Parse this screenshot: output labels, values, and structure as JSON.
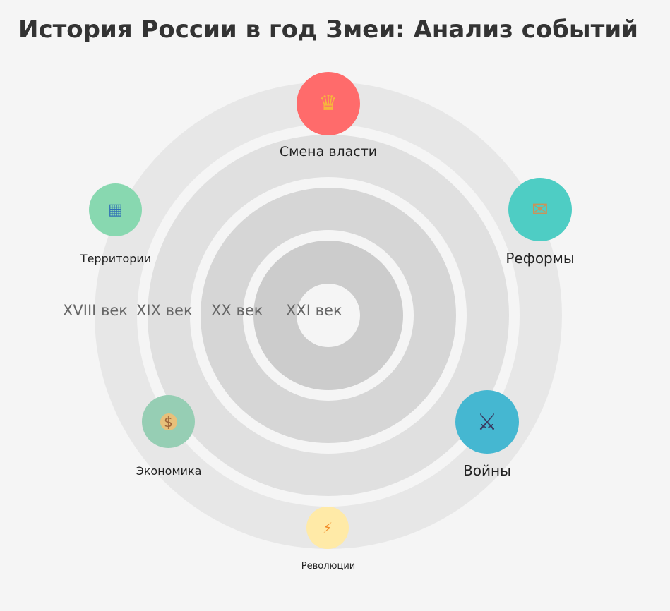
{
  "title": "История России в год Змеи: Анализ событий",
  "eras": [
    "XVIII век",
    "XIX век",
    "XX век",
    "XXI век"
  ],
  "categories": [
    {
      "label": "Смена власти",
      "icon": "crown-icon",
      "glyph": "♛",
      "color": "#ff6b6b"
    },
    {
      "label": "Реформы",
      "icon": "scroll-icon",
      "glyph": "✉",
      "color": "#4ecdc4"
    },
    {
      "label": "Войны",
      "icon": "crossed-swords-icon",
      "glyph": "⚔",
      "color": "#45b7d1"
    },
    {
      "label": "Революции",
      "icon": "lightning-icon",
      "glyph": "⚡",
      "color": "#ffeaa7"
    },
    {
      "label": "Экономика",
      "icon": "money-bag-icon",
      "glyph": "$",
      "color": "#96ceb4"
    },
    {
      "label": "Территории",
      "icon": "map-icon",
      "glyph": "▦",
      "color": "#88d8b0"
    }
  ]
}
